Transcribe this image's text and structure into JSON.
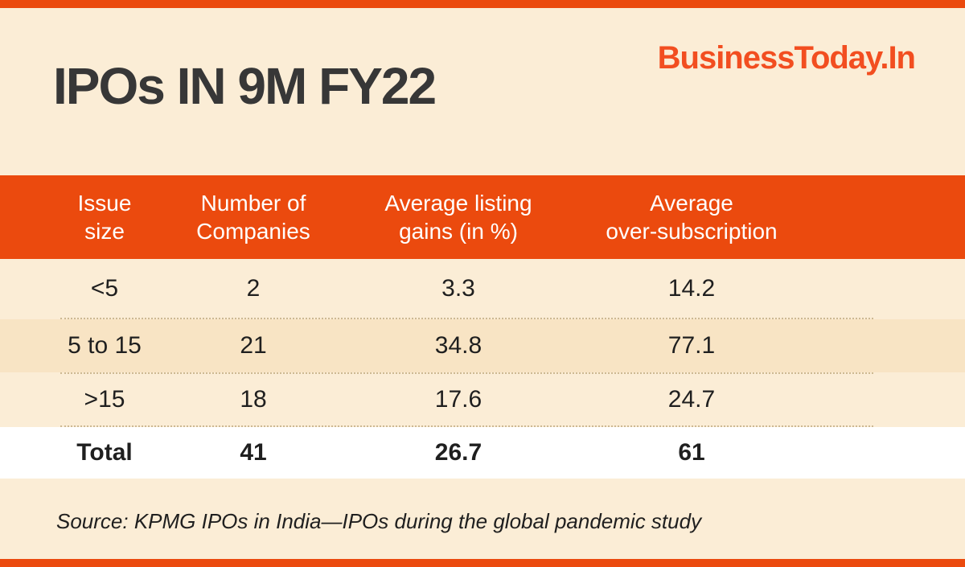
{
  "brand": {
    "label": "BusinessToday.In"
  },
  "header": {
    "title": "IPOs IN 9M FY22"
  },
  "chart_data": {
    "type": "table",
    "title": "IPOs IN 9M FY22",
    "columns": [
      "Issue\nsize",
      "Number of\nCompanies",
      "Average listing\ngains (in %)",
      "Average\nover-subscription"
    ],
    "rows": [
      [
        "<5",
        "2",
        "3.3",
        "14.2"
      ],
      [
        "5 to 15",
        "21",
        "34.8",
        "77.1"
      ],
      [
        ">15",
        "18",
        "17.6",
        "24.7"
      ]
    ],
    "total_row": [
      "Total",
      "41",
      "26.7",
      "61"
    ]
  },
  "footer": {
    "source": "Source: KPMG IPOs in India—IPOs during the global pandemic study"
  },
  "colors": {
    "accent": "#EB4A0E",
    "brand": "#F24E20",
    "background": "#FBEDD6",
    "row_alt": "#F8E4C4",
    "total_row_bg": "#FFFFFF",
    "header_text": "#FFFFFF",
    "title_text": "#373737",
    "body_text": "#1F1F1F",
    "divider": "#CDB993"
  }
}
